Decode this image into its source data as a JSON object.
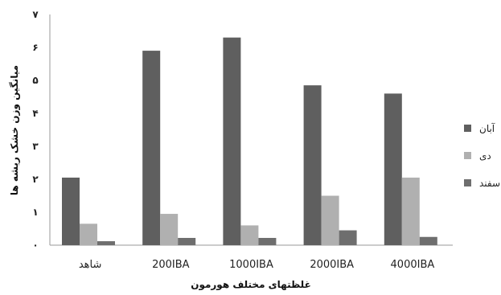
{
  "chart_data": {
    "type": "bar",
    "categories": [
      "شاهد",
      "200IBA",
      "1000IBA",
      "2000IBA",
      "4000IBA"
    ],
    "y_tick_labels": [
      "۰",
      "۱",
      "۲",
      "۳",
      "۴",
      "۵",
      "۶",
      "۷"
    ],
    "ylim": [
      0,
      7
    ],
    "series": [
      {
        "name": "آبان",
        "color": "#5f5f5f",
        "values": [
          2.05,
          5.9,
          6.3,
          4.85,
          4.6
        ]
      },
      {
        "name": "دی",
        "color": "#b0b0b0",
        "values": [
          0.65,
          0.95,
          0.6,
          1.5,
          2.05
        ]
      },
      {
        "name": "اسفند",
        "color": "#6e6e6e",
        "values": [
          0.12,
          0.22,
          0.22,
          0.45,
          0.25
        ]
      }
    ],
    "ylabel": "میانگین وزن خشک ریشه ها",
    "xlabel": "غلظتهای مختلف هورمون",
    "grid": false,
    "legend_position": "right"
  }
}
